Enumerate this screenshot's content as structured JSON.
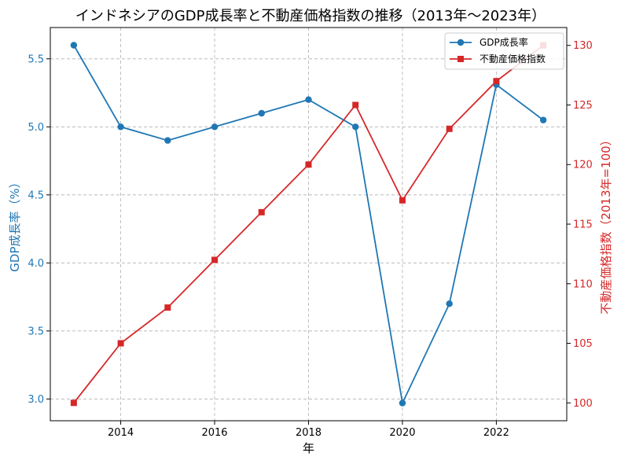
{
  "chart_data": {
    "type": "line",
    "title": "インドネシアのGDP成長率と不動産価格指数の推移（2013年〜2023年）",
    "xlabel": "年",
    "x": [
      2013,
      2014,
      2015,
      2016,
      2017,
      2018,
      2019,
      2020,
      2021,
      2022,
      2023
    ],
    "x_ticks": [
      2014,
      2016,
      2018,
      2020,
      2022
    ],
    "xlim": [
      2012.5,
      2023.5
    ],
    "grid": true,
    "legend_position": "top-right",
    "axes": {
      "left": {
        "label": "GDP成長率（%）",
        "color": "#1f77b4",
        "ylim": [
          2.84,
          5.73
        ],
        "ticks": [
          "3.0",
          "3.5",
          "4.0",
          "4.5",
          "5.0",
          "5.5"
        ]
      },
      "right": {
        "label": "不動産価格指数（2013年=100）",
        "color": "#d62728",
        "ylim": [
          98.5,
          131.5
        ],
        "ticks": [
          "100",
          "105",
          "110",
          "115",
          "120",
          "125",
          "130"
        ]
      }
    },
    "series": [
      {
        "name": "GDP成長率",
        "axis": "left",
        "color": "#1f77b4",
        "marker": "circle",
        "values": [
          5.6,
          5.0,
          4.9,
          5.0,
          5.1,
          5.2,
          5.0,
          2.97,
          3.7,
          5.31,
          5.05
        ]
      },
      {
        "name": "不動産価格指数",
        "axis": "right",
        "color": "#d62728",
        "marker": "square",
        "values": [
          100,
          105,
          108,
          112,
          116,
          120,
          125,
          117,
          123,
          127,
          130
        ]
      }
    ]
  }
}
